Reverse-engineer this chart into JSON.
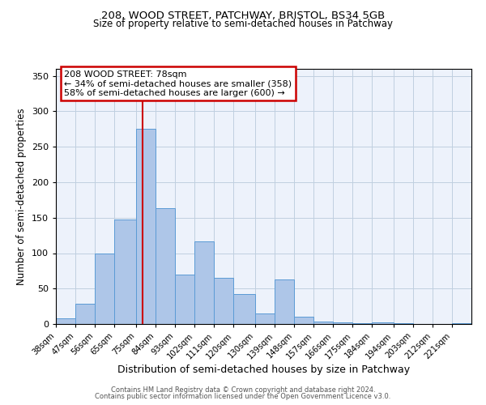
{
  "title1": "208, WOOD STREET, PATCHWAY, BRISTOL, BS34 5GB",
  "title2": "Size of property relative to semi-detached houses in Patchway",
  "xlabel": "Distribution of semi-detached houses by size in Patchway",
  "ylabel": "Number of semi-detached properties",
  "bar_labels": [
    "38sqm",
    "47sqm",
    "56sqm",
    "65sqm",
    "75sqm",
    "84sqm",
    "93sqm",
    "102sqm",
    "111sqm",
    "120sqm",
    "130sqm",
    "139sqm",
    "148sqm",
    "157sqm",
    "166sqm",
    "175sqm",
    "184sqm",
    "194sqm",
    "203sqm",
    "212sqm",
    "221sqm"
  ],
  "bar_values": [
    8,
    29,
    100,
    148,
    275,
    163,
    70,
    117,
    65,
    42,
    15,
    63,
    10,
    3,
    2,
    1,
    2,
    1,
    0,
    0,
    1
  ],
  "bar_edges": [
    38,
    47,
    56,
    65,
    75,
    84,
    93,
    102,
    111,
    120,
    130,
    139,
    148,
    157,
    166,
    175,
    184,
    194,
    203,
    212,
    221,
    230
  ],
  "bar_color": "#aec6e8",
  "bar_edgecolor": "#5b9bd5",
  "property_value": 78,
  "vline_color": "#cc0000",
  "annotation_title": "208 WOOD STREET: 78sqm",
  "annotation_line1": "← 34% of semi-detached houses are smaller (358)",
  "annotation_line2": "58% of semi-detached houses are larger (600) →",
  "annotation_box_edgecolor": "#cc0000",
  "ylim": [
    0,
    360
  ],
  "yticks": [
    0,
    50,
    100,
    150,
    200,
    250,
    300,
    350
  ],
  "footer1": "Contains HM Land Registry data © Crown copyright and database right 2024.",
  "footer2": "Contains public sector information licensed under the Open Government Licence v3.0.",
  "bg_color": "#edf2fb"
}
